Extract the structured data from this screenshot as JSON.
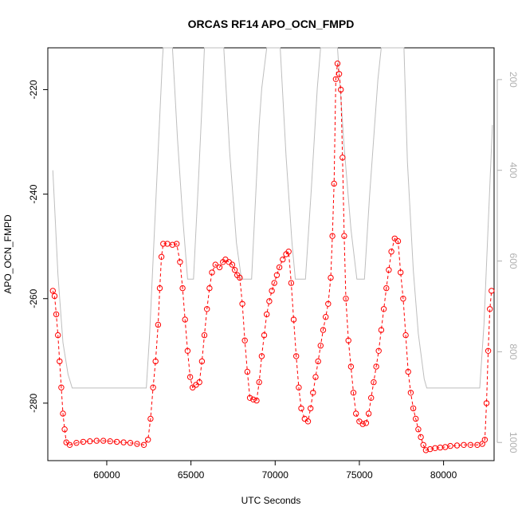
{
  "chart_data": {
    "type": "line",
    "title": "ORCAS RF14 APO_OCN_FMPD",
    "xlabel": "UTC Seconds",
    "ylabel": "APO_OCN_FMPD",
    "xlim": [
      56500,
      83000
    ],
    "ylim": [
      -291,
      -212
    ],
    "y2lim": [
      1040,
      130
    ],
    "y2_inverted": true,
    "x_ticks": [
      60000,
      65000,
      70000,
      75000,
      80000
    ],
    "x_tick_labels": [
      "60000",
      "65000",
      "70000",
      "75000",
      "80000"
    ],
    "y_ticks": [
      -220,
      -240,
      -260,
      -280
    ],
    "y_tick_labels": [
      "-220",
      "-240",
      "-260",
      "-280"
    ],
    "y2_ticks": [
      200,
      400,
      600,
      800,
      1000
    ],
    "y2_tick_labels": [
      "200",
      "400",
      "600",
      "800",
      "1000"
    ],
    "colors": {
      "apo_series": "#ff0000",
      "pressure_series": "#bebebe",
      "axes": "#000000"
    },
    "series": [
      {
        "marker": "open-circle",
        "color": "#ff0000",
        "points": [
          [
            56800,
            -258.5
          ],
          [
            56900,
            -259.5
          ],
          [
            57000,
            -263
          ],
          [
            57100,
            -267
          ],
          [
            57200,
            -272
          ],
          [
            57300,
            -277
          ],
          [
            57400,
            -282
          ],
          [
            57500,
            -285
          ],
          [
            57600,
            -287.5
          ],
          [
            57800,
            -288
          ],
          [
            58200,
            -287.6
          ],
          [
            58600,
            -287.4
          ],
          [
            59000,
            -287.3
          ],
          [
            59400,
            -287.2
          ],
          [
            59800,
            -287.2
          ],
          [
            60200,
            -287.3
          ],
          [
            60600,
            -287.4
          ],
          [
            61000,
            -287.5
          ],
          [
            61400,
            -287.6
          ],
          [
            61800,
            -287.8
          ],
          [
            62200,
            -288
          ],
          [
            62450,
            -287
          ],
          [
            62600,
            -283
          ],
          [
            62750,
            -277
          ],
          [
            62900,
            -272
          ],
          [
            63050,
            -265
          ],
          [
            63150,
            -258
          ],
          [
            63250,
            -252
          ],
          [
            63350,
            -249.5
          ],
          [
            63600,
            -249.5
          ],
          [
            63900,
            -249.7
          ],
          [
            64150,
            -249.5
          ],
          [
            64350,
            -253
          ],
          [
            64500,
            -258
          ],
          [
            64650,
            -264
          ],
          [
            64800,
            -270
          ],
          [
            64950,
            -275
          ],
          [
            65100,
            -277
          ],
          [
            65300,
            -276.5
          ],
          [
            65500,
            -276
          ],
          [
            65650,
            -272
          ],
          [
            65800,
            -267
          ],
          [
            65950,
            -262
          ],
          [
            66100,
            -258
          ],
          [
            66250,
            -255
          ],
          [
            66450,
            -253.5
          ],
          [
            66700,
            -254
          ],
          [
            66900,
            -253
          ],
          [
            67050,
            -252.5
          ],
          [
            67250,
            -253
          ],
          [
            67450,
            -253.5
          ],
          [
            67600,
            -254.5
          ],
          [
            67750,
            -255.5
          ],
          [
            67900,
            -256
          ],
          [
            68050,
            -261
          ],
          [
            68200,
            -268
          ],
          [
            68350,
            -274
          ],
          [
            68500,
            -279
          ],
          [
            68700,
            -279.3
          ],
          [
            68900,
            -279.5
          ],
          [
            69050,
            -276
          ],
          [
            69200,
            -271
          ],
          [
            69350,
            -267
          ],
          [
            69500,
            -263
          ],
          [
            69650,
            -260.5
          ],
          [
            69800,
            -258.5
          ],
          [
            69950,
            -257
          ],
          [
            70100,
            -255.5
          ],
          [
            70250,
            -254
          ],
          [
            70450,
            -252.5
          ],
          [
            70650,
            -251.5
          ],
          [
            70800,
            -251
          ],
          [
            70950,
            -257
          ],
          [
            71100,
            -264
          ],
          [
            71250,
            -271
          ],
          [
            71400,
            -277
          ],
          [
            71550,
            -281
          ],
          [
            71750,
            -283
          ],
          [
            71950,
            -283.5
          ],
          [
            72100,
            -281
          ],
          [
            72250,
            -278
          ],
          [
            72400,
            -275
          ],
          [
            72550,
            -272
          ],
          [
            72700,
            -269
          ],
          [
            72850,
            -266
          ],
          [
            73000,
            -263.5
          ],
          [
            73150,
            -261
          ],
          [
            73300,
            -256
          ],
          [
            73400,
            -248
          ],
          [
            73500,
            -238
          ],
          [
            73600,
            -218
          ],
          [
            73700,
            -215
          ],
          [
            73800,
            -217
          ],
          [
            73900,
            -220
          ],
          [
            74000,
            -233
          ],
          [
            74100,
            -248
          ],
          [
            74200,
            -260
          ],
          [
            74350,
            -268
          ],
          [
            74500,
            -273
          ],
          [
            74650,
            -278
          ],
          [
            74800,
            -282
          ],
          [
            75000,
            -283.5
          ],
          [
            75200,
            -284
          ],
          [
            75400,
            -283.8
          ],
          [
            75550,
            -282
          ],
          [
            75700,
            -279
          ],
          [
            75850,
            -276
          ],
          [
            76000,
            -273
          ],
          [
            76150,
            -270
          ],
          [
            76300,
            -266
          ],
          [
            76450,
            -262
          ],
          [
            76600,
            -258
          ],
          [
            76750,
            -254.5
          ],
          [
            76900,
            -251
          ],
          [
            77100,
            -248.5
          ],
          [
            77300,
            -249
          ],
          [
            77450,
            -255
          ],
          [
            77600,
            -260
          ],
          [
            77750,
            -267
          ],
          [
            77900,
            -274
          ],
          [
            78050,
            -278
          ],
          [
            78200,
            -281
          ],
          [
            78350,
            -283
          ],
          [
            78500,
            -285
          ],
          [
            78650,
            -286.5
          ],
          [
            78800,
            -288
          ],
          [
            78950,
            -289
          ],
          [
            79200,
            -288.8
          ],
          [
            79500,
            -288.6
          ],
          [
            79800,
            -288.5
          ],
          [
            80100,
            -288.4
          ],
          [
            80400,
            -288.2
          ],
          [
            80800,
            -288.1
          ],
          [
            81200,
            -288
          ],
          [
            81600,
            -288
          ],
          [
            82000,
            -288
          ],
          [
            82300,
            -287.8
          ],
          [
            82450,
            -287
          ],
          [
            82550,
            -280
          ],
          [
            82650,
            -270
          ],
          [
            82750,
            -262
          ],
          [
            82850,
            -258.5
          ]
        ]
      },
      {
        "axis": "right",
        "marker": "none",
        "color": "#bebebe",
        "points": [
          [
            56800,
            400
          ],
          [
            57100,
            630
          ],
          [
            57400,
            780
          ],
          [
            57700,
            850
          ],
          [
            57950,
            880
          ],
          [
            62350,
            880
          ],
          [
            62550,
            760
          ],
          [
            62800,
            560
          ],
          [
            63050,
            360
          ],
          [
            63300,
            160
          ],
          [
            63350,
            130
          ],
          [
            63900,
            130
          ],
          [
            64200,
            330
          ],
          [
            64500,
            500
          ],
          [
            64800,
            640
          ],
          [
            65150,
            640
          ],
          [
            65450,
            420
          ],
          [
            65700,
            220
          ],
          [
            65800,
            130
          ],
          [
            66950,
            130
          ],
          [
            67300,
            360
          ],
          [
            67700,
            560
          ],
          [
            68000,
            640
          ],
          [
            68600,
            640
          ],
          [
            68850,
            450
          ],
          [
            69050,
            300
          ],
          [
            69200,
            220
          ],
          [
            69500,
            130
          ],
          [
            70300,
            130
          ],
          [
            70650,
            370
          ],
          [
            71000,
            560
          ],
          [
            71200,
            640
          ],
          [
            71800,
            640
          ],
          [
            72150,
            440
          ],
          [
            72500,
            220
          ],
          [
            72700,
            130
          ],
          [
            73700,
            130
          ],
          [
            74100,
            350
          ],
          [
            74500,
            530
          ],
          [
            74850,
            640
          ],
          [
            75300,
            640
          ],
          [
            75600,
            460
          ],
          [
            76100,
            200
          ],
          [
            76300,
            130
          ],
          [
            77650,
            130
          ],
          [
            77850,
            380
          ],
          [
            78200,
            620
          ],
          [
            78500,
            760
          ],
          [
            78850,
            860
          ],
          [
            79000,
            880
          ],
          [
            82150,
            880
          ],
          [
            82400,
            740
          ],
          [
            82650,
            520
          ],
          [
            82900,
            300
          ]
        ]
      }
    ]
  }
}
